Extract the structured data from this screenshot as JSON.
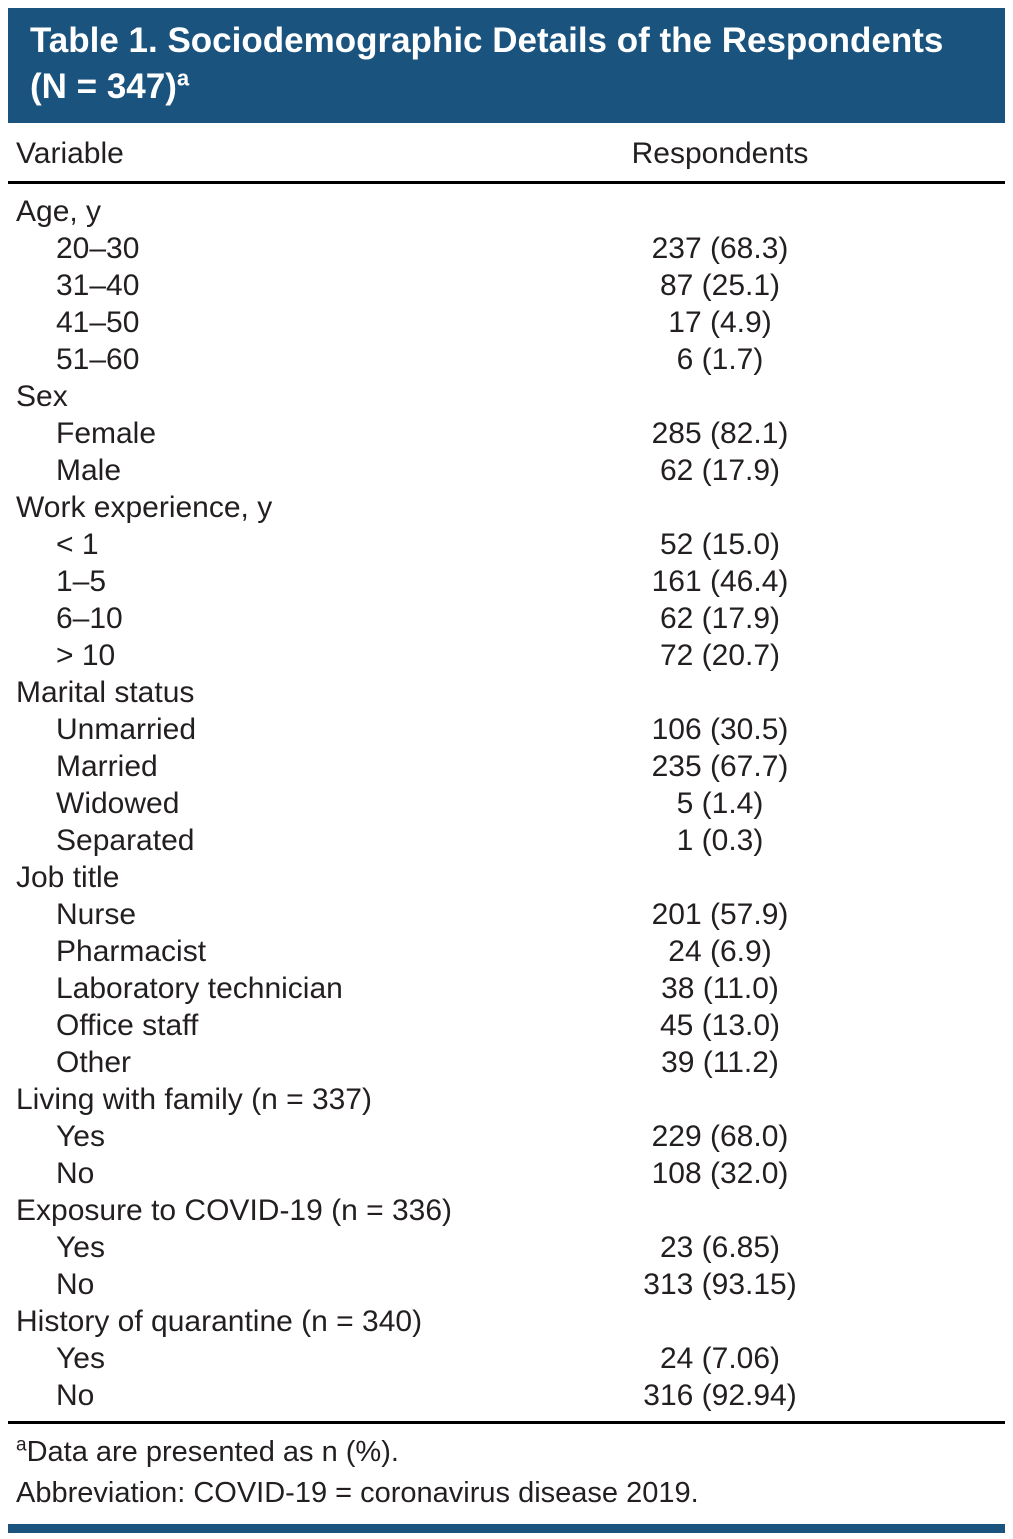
{
  "colors": {
    "banner_bg": "#1a537d",
    "text": "#231f20",
    "rule": "#000000"
  },
  "table": {
    "title": {
      "line1": "Table 1. Sociodemographic Details of the Respondents",
      "line2": "(N = 347)",
      "superscript": "a"
    },
    "columns": [
      "Variable",
      "Respondents"
    ],
    "sections": [
      {
        "header": "Age, y",
        "rows": [
          [
            "20–30",
            "237 (68.3)"
          ],
          [
            "31–40",
            "87 (25.1)"
          ],
          [
            "41–50",
            "17 (4.9)"
          ],
          [
            "51–60",
            "6 (1.7)"
          ]
        ]
      },
      {
        "header": "Sex",
        "rows": [
          [
            "Female",
            "285 (82.1)"
          ],
          [
            "Male",
            "62 (17.9)"
          ]
        ]
      },
      {
        "header": "Work experience, y",
        "rows": [
          [
            "< 1",
            "52 (15.0)"
          ],
          [
            "1–5",
            "161 (46.4)"
          ],
          [
            "6–10",
            "62 (17.9)"
          ],
          [
            "> 10",
            "72 (20.7)"
          ]
        ]
      },
      {
        "header": "Marital status",
        "rows": [
          [
            "Unmarried",
            "106 (30.5)"
          ],
          [
            "Married",
            "235 (67.7)"
          ],
          [
            "Widowed",
            "5 (1.4)"
          ],
          [
            "Separated",
            "1 (0.3)"
          ]
        ]
      },
      {
        "header": "Job title",
        "rows": [
          [
            "Nurse",
            "201 (57.9)"
          ],
          [
            "Pharmacist",
            "24 (6.9)"
          ],
          [
            "Laboratory technician",
            "38 (11.0)"
          ],
          [
            "Office staff",
            "45 (13.0)"
          ],
          [
            "Other",
            "39 (11.2)"
          ]
        ]
      },
      {
        "header": "Living with family (n = 337)",
        "rows": [
          [
            "Yes",
            "229 (68.0)"
          ],
          [
            "No",
            "108 (32.0)"
          ]
        ]
      },
      {
        "header": "Exposure to COVID-19 (n = 336)",
        "rows": [
          [
            "Yes",
            "23 (6.85)"
          ],
          [
            "No",
            "313 (93.15)"
          ]
        ]
      },
      {
        "header": "History of quarantine (n = 340)",
        "rows": [
          [
            "Yes",
            "24 (7.06)"
          ],
          [
            "No",
            "316 (92.94)"
          ]
        ]
      }
    ],
    "footnotes": [
      {
        "superscript": "a",
        "text": "Data are presented as n (%)."
      },
      {
        "superscript": "",
        "text": "Abbreviation: COVID-19 = coronavirus disease 2019."
      }
    ]
  }
}
